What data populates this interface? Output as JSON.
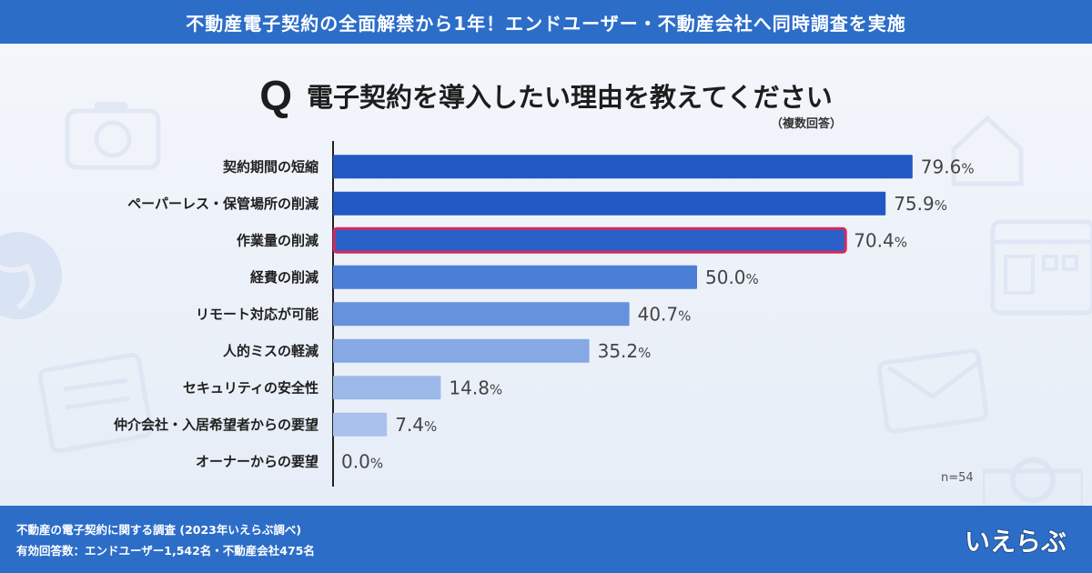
{
  "header": {
    "title": "不動産電子契約の全面解禁から1年！エンドユーザー・不動産会社へ同時調査を実施"
  },
  "question": {
    "mark": "Q",
    "text": "電子契約を導入したい理由を教えてください",
    "note": "（複数回答）"
  },
  "sample": {
    "label": "n=54"
  },
  "chart_data": {
    "type": "bar",
    "orientation": "horizontal",
    "title": "電子契約を導入したい理由を教えてください",
    "categories": [
      "契約期間の短縮",
      "ペーパーレス・保管場所の削減",
      "作業量の削減",
      "経費の削減",
      "リモート対応が可能",
      "人的ミスの軽減",
      "セキュリティの安全性",
      "仲介会社・入居希望者からの要望",
      "オーナーからの要望"
    ],
    "values": [
      79.6,
      75.9,
      70.4,
      50.0,
      40.7,
      35.2,
      14.8,
      7.4,
      0.0
    ],
    "value_labels": [
      "79.6",
      "75.9",
      "70.4",
      "50.0",
      "40.7",
      "35.2",
      "14.8",
      "7.4",
      "0.0"
    ],
    "unit": "%",
    "xlim": [
      0,
      100
    ],
    "highlight_index": 2,
    "colors": [
      "#2258c4",
      "#2258c4",
      "#2a61c9",
      "#4b7fd6",
      "#6591dd",
      "#86a9e5",
      "#9db9ea",
      "#a9c1ec",
      "#a9c1ec"
    ],
    "highlight_border": "#d8285a"
  },
  "footer": {
    "line1": "不動産の電子契約に関する調査 (2023年いえらぶ調べ)",
    "line2": "有効回答数：エンドユーザー1,542名・不動産会社475名"
  },
  "logo": {
    "text": "いえらぶ",
    "icon": "ierabu-logo"
  }
}
